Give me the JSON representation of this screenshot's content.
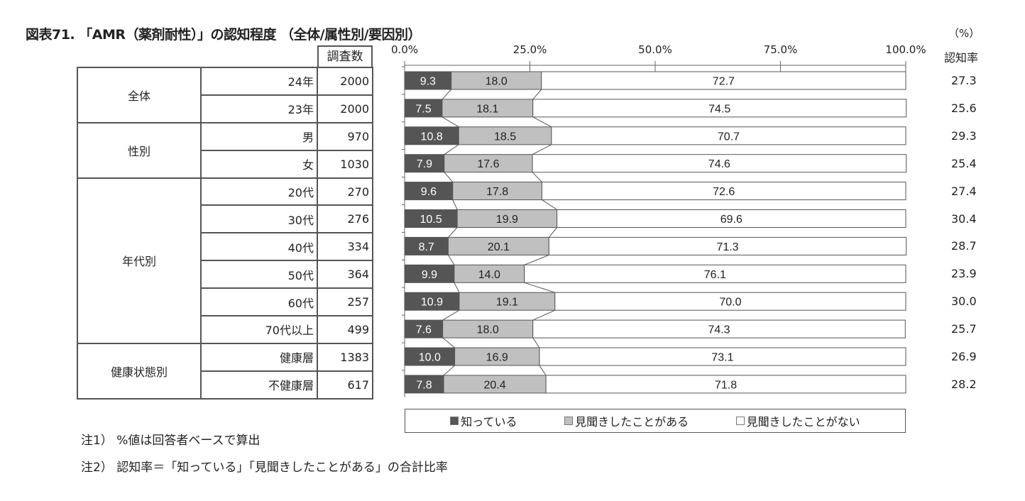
{
  "title": "図表71. 「AMR（薬剤耐性）」の認知程度 （全体/属性別/要因別）",
  "unit_label": "（%）",
  "rate_header": "認知率",
  "n_header": "調査数",
  "notes": [
    "注1） %値は回答者ベースで算出",
    "注2） 認知率＝「知っている」「見聞きしたことがある」の合計比率"
  ],
  "groups": [
    {
      "label": "全体",
      "rows": 2
    },
    {
      "label": "性別",
      "rows": 2
    },
    {
      "label": "年代別",
      "rows": 6
    },
    {
      "label": "健康状態別",
      "rows": 2
    }
  ],
  "colors": {
    "know": "#555555",
    "heard": "#c0c0c0",
    "never": "#ffffff"
  },
  "chart_data": {
    "type": "bar",
    "orientation": "horizontal-stacked-100",
    "title": "「AMR（薬剤耐性）」の認知程度 （全体/属性別/要因別）",
    "xlabel": "",
    "ylabel": "",
    "xlim": [
      0,
      100
    ],
    "x_ticks": [
      "0.0%",
      "25.0%",
      "50.0%",
      "75.0%",
      "100.0%"
    ],
    "legend_position": "bottom",
    "categories": [
      "24年",
      "23年",
      "男",
      "女",
      "20代",
      "30代",
      "40代",
      "50代",
      "60代",
      "70代以上",
      "健康層",
      "不健康層"
    ],
    "n": [
      2000,
      2000,
      970,
      1030,
      270,
      276,
      334,
      364,
      257,
      499,
      1383,
      617
    ],
    "series": [
      {
        "name": "知っている",
        "values": [
          9.3,
          7.5,
          10.8,
          7.9,
          9.6,
          10.5,
          8.7,
          9.9,
          10.9,
          7.6,
          10.0,
          7.8
        ]
      },
      {
        "name": "見聞きしたことがある",
        "values": [
          18.0,
          18.1,
          18.5,
          17.6,
          17.8,
          19.9,
          20.1,
          14.0,
          19.1,
          18.0,
          16.9,
          20.4
        ]
      },
      {
        "name": "見聞きしたことがない",
        "values": [
          72.7,
          74.5,
          70.7,
          74.6,
          72.6,
          69.6,
          71.3,
          76.1,
          70.0,
          74.3,
          73.1,
          71.8
        ]
      }
    ],
    "recognition_rate": [
      27.3,
      25.6,
      29.3,
      25.4,
      27.4,
      30.4,
      28.7,
      23.9,
      30.0,
      25.7,
      26.9,
      28.2
    ]
  }
}
